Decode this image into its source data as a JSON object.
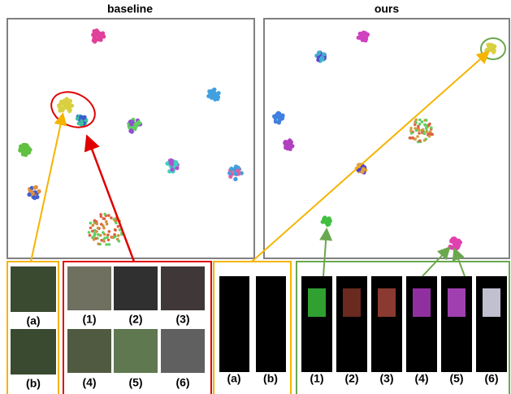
{
  "panels": {
    "titles": [
      "baseline",
      "ours"
    ]
  },
  "baseline_query": [
    "(a)",
    "(b)"
  ],
  "baseline_gallery": [
    "(1)",
    "(2)",
    "(3)",
    "(4)",
    "(5)",
    "(6)"
  ],
  "ours_query": [
    "(a)",
    "(b)"
  ],
  "ours_gallery": [
    "(1)",
    "(2)",
    "(3)",
    "(4)",
    "(5)",
    "(6)"
  ]
}
